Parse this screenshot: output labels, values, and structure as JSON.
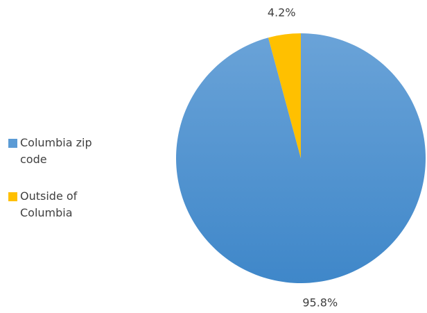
{
  "chart_data": {
    "type": "pie",
    "categories": [
      "Columbia zip code",
      "Outside of Columbia"
    ],
    "values": [
      95.8,
      4.2
    ],
    "value_labels": [
      "95.8%",
      "4.2%"
    ],
    "colors": [
      "#5b9bd5",
      "#ffc000"
    ],
    "legend": "left"
  }
}
